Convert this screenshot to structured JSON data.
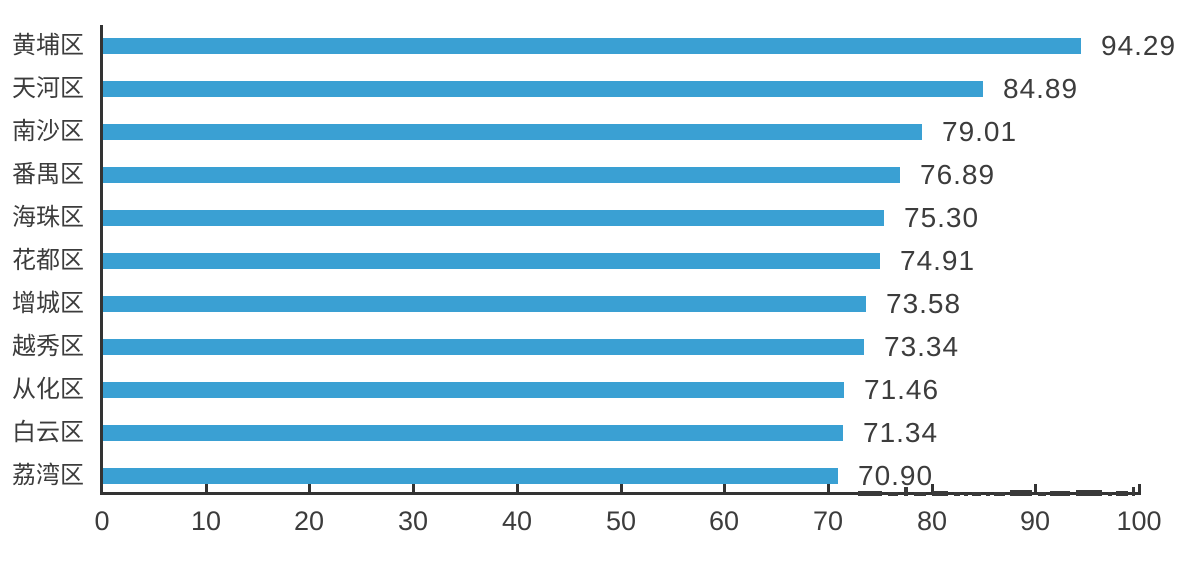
{
  "chart_data": {
    "type": "bar",
    "orientation": "horizontal",
    "title": "",
    "categories": [
      "黄埔区",
      "天河区",
      "南沙区",
      "番禺区",
      "海珠区",
      "花都区",
      "增城区",
      "越秀区",
      "从化区",
      "白云区",
      "荔湾区"
    ],
    "values": [
      94.29,
      84.89,
      79.01,
      76.89,
      75.3,
      74.91,
      73.58,
      73.34,
      71.46,
      71.34,
      70.9
    ],
    "value_labels": [
      "94.29",
      "84.89",
      "79.01",
      "76.89",
      "75.30",
      "74.91",
      "73.58",
      "73.34",
      "71.46",
      "71.34",
      "70.90"
    ],
    "x_ticks": [
      "0",
      "10",
      "20",
      "30",
      "40",
      "50",
      "60",
      "70",
      "80",
      "90",
      "100"
    ],
    "xlim": [
      0,
      100
    ],
    "grid": "off",
    "legend": "none",
    "colors": {
      "bar": "#3aa0d3",
      "axis": "#333333",
      "text": "#3c3c3c"
    }
  }
}
